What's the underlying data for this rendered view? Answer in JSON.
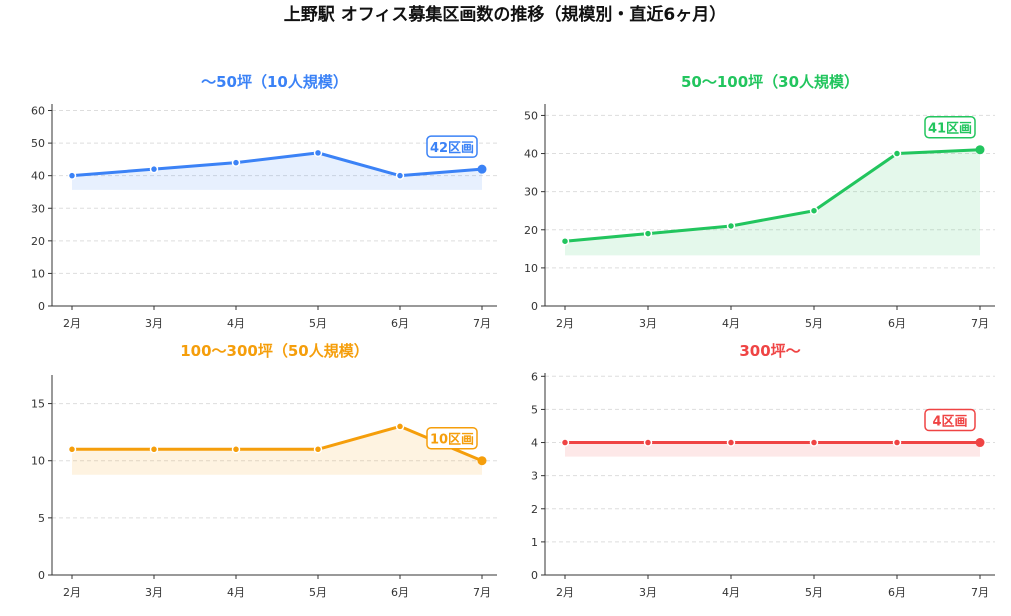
{
  "title": "上野駅 オフィス募集区画数の推移（規模別・直近6ヶ月）",
  "chart_data": [
    {
      "type": "line",
      "title": "〜50坪（10人規模）",
      "color": "#3b82f6",
      "categories": [
        "2月",
        "3月",
        "4月",
        "5月",
        "6月",
        "7月"
      ],
      "values": [
        40,
        42,
        44,
        47,
        40,
        42
      ],
      "yticks": [
        0,
        10,
        20,
        30,
        40,
        50,
        60
      ],
      "ylim": [
        0,
        62
      ],
      "end_label": "42区画",
      "grid": true
    },
    {
      "type": "line",
      "title": "50〜100坪（30人規模）",
      "color": "#22c55e",
      "categories": [
        "2月",
        "3月",
        "4月",
        "5月",
        "6月",
        "7月"
      ],
      "values": [
        17,
        19,
        21,
        25,
        40,
        41
      ],
      "yticks": [
        0,
        10,
        20,
        30,
        40,
        50
      ],
      "ylim": [
        0,
        53
      ],
      "end_label": "41区画",
      "grid": true
    },
    {
      "type": "line",
      "title": "100〜300坪（50人規模）",
      "color": "#f59e0b",
      "categories": [
        "2月",
        "3月",
        "4月",
        "5月",
        "6月",
        "7月"
      ],
      "values": [
        11,
        11,
        11,
        11,
        13,
        10
      ],
      "yticks": [
        0,
        5,
        10,
        15
      ],
      "ylim": [
        0,
        17.5
      ],
      "end_label": "10区画",
      "grid": true
    },
    {
      "type": "line",
      "title": "300坪〜",
      "color": "#ef4444",
      "categories": [
        "2月",
        "3月",
        "4月",
        "5月",
        "6月",
        "7月"
      ],
      "values": [
        4,
        4,
        4,
        4,
        4,
        4
      ],
      "yticks": [
        0,
        1,
        2,
        3,
        4,
        5,
        6
      ],
      "ylim": [
        0,
        6.1
      ],
      "end_label": "4区画",
      "grid": true
    }
  ]
}
